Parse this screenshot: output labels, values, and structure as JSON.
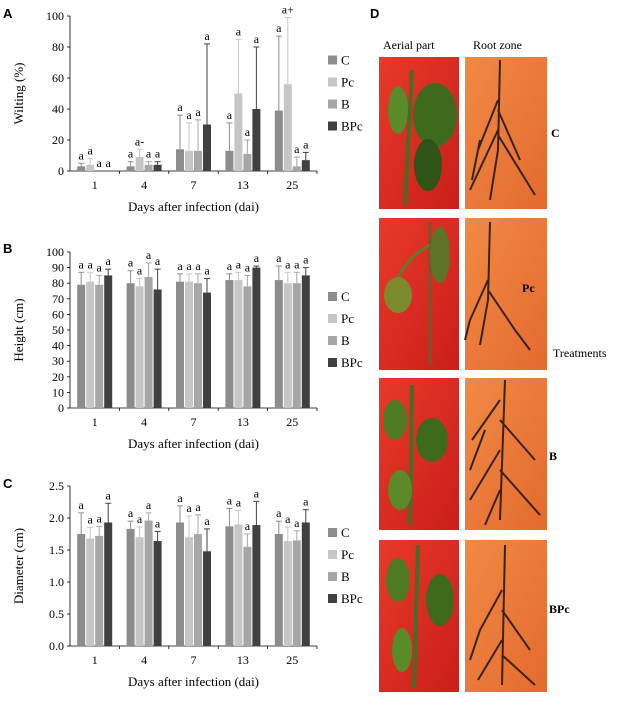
{
  "panels": {
    "A": "A",
    "B": "B",
    "C": "C",
    "D": "D"
  },
  "legend": {
    "entries": [
      "C",
      "Pc",
      "B",
      "BPc"
    ],
    "colors": [
      "#8c8c8c",
      "#c6c6c6",
      "#a6a6a6",
      "#404040"
    ]
  },
  "chart_data": [
    {
      "type": "bar",
      "panel": "A",
      "categories": [
        "1",
        "4",
        "7",
        "13",
        "25"
      ],
      "xlabel": "Days after infection (dai)",
      "ylabel": "Wilting (%)",
      "ylim": [
        0,
        100
      ],
      "yticks": [
        "0",
        "20",
        "40",
        "60",
        "80",
        "100"
      ],
      "series": [
        {
          "name": "C",
          "values": [
            3,
            3,
            14,
            13,
            39
          ],
          "errors": [
            2,
            3,
            22,
            18,
            48
          ]
        },
        {
          "name": "Pc",
          "values": [
            4,
            9,
            13,
            50,
            56
          ],
          "errors": [
            4,
            5,
            18,
            35,
            43
          ]
        },
        {
          "name": "B",
          "values": [
            0,
            4,
            13,
            11,
            3
          ],
          "errors": [
            0,
            2,
            20,
            9,
            6
          ]
        },
        {
          "name": "BPc",
          "values": [
            0,
            4,
            30,
            40,
            7
          ],
          "errors": [
            0,
            2,
            52,
            40,
            5
          ]
        }
      ],
      "bar_labels": [
        [
          "a",
          "a",
          "a",
          "a"
        ],
        [
          "a",
          "a-",
          "a",
          "a"
        ],
        [
          "a",
          "a",
          "a",
          "a"
        ],
        [
          "a",
          "a",
          "a",
          "a"
        ],
        [
          "a",
          "a+",
          "a",
          "a"
        ]
      ]
    },
    {
      "type": "bar",
      "panel": "B",
      "categories": [
        "1",
        "4",
        "7",
        "13",
        "25"
      ],
      "xlabel": "Days after infection (dai)",
      "ylabel": "Height (cm)",
      "ylim": [
        0,
        100
      ],
      "yticks": [
        "0",
        "10",
        "20",
        "30",
        "40",
        "50",
        "60",
        "70",
        "80",
        "90",
        "100"
      ],
      "series": [
        {
          "name": "C",
          "values": [
            79,
            80,
            81,
            82,
            82
          ],
          "errors": [
            8,
            8,
            5,
            4,
            9
          ]
        },
        {
          "name": "Pc",
          "values": [
            81,
            78,
            81,
            82,
            80
          ],
          "errors": [
            6,
            5,
            5,
            5,
            7
          ]
        },
        {
          "name": "B",
          "values": [
            79,
            84,
            80,
            78,
            80
          ],
          "errors": [
            6,
            9,
            6,
            7,
            7
          ]
        },
        {
          "name": "BPc",
          "values": [
            85,
            76,
            74,
            90,
            85
          ],
          "errors": [
            4,
            13,
            9,
            1,
            5
          ]
        }
      ],
      "bar_labels": [
        [
          "a",
          "a",
          "a",
          "a"
        ],
        [
          "a",
          "a",
          "a",
          "a"
        ],
        [
          "a",
          "a",
          "a",
          "a"
        ],
        [
          "a",
          "a",
          "a",
          "a"
        ],
        [
          "a",
          "a",
          "a",
          "a"
        ]
      ]
    },
    {
      "type": "bar",
      "panel": "C",
      "categories": [
        "1",
        "4",
        "7",
        "13",
        "25"
      ],
      "xlabel": "Days after infection (dai)",
      "ylabel": "Diameter (cm)",
      "ylim": [
        0,
        2.5
      ],
      "yticks": [
        "0.0",
        "0.5",
        "1.0",
        "1.5",
        "2.0",
        "2.5"
      ],
      "series": [
        {
          "name": "C",
          "values": [
            1.75,
            1.83,
            1.93,
            1.87,
            1.75
          ],
          "errors": [
            0.33,
            0.12,
            0.26,
            0.28,
            0.2
          ]
        },
        {
          "name": "Pc",
          "values": [
            1.68,
            1.7,
            1.7,
            1.9,
            1.64
          ],
          "errors": [
            0.17,
            0.16,
            0.33,
            0.22,
            0.22
          ]
        },
        {
          "name": "B",
          "values": [
            1.72,
            1.96,
            1.75,
            1.55,
            1.65
          ],
          "errors": [
            0.15,
            0.12,
            0.3,
            0.2,
            0.15
          ]
        },
        {
          "name": "BPc",
          "values": [
            1.93,
            1.64,
            1.48,
            1.89,
            1.93
          ],
          "errors": [
            0.3,
            0.15,
            0.35,
            0.37,
            0.2
          ]
        }
      ],
      "bar_labels": [
        [
          "a",
          "a",
          "a",
          "a"
        ],
        [
          "a",
          "a",
          "a",
          "a"
        ],
        [
          "a",
          "a",
          "a",
          "a"
        ],
        [
          "a",
          "a",
          "a",
          "a"
        ],
        [
          "a",
          "a",
          "a",
          "a"
        ]
      ]
    }
  ],
  "photos": {
    "headers": [
      "Aerial part",
      "Root zone"
    ],
    "row_labels": [
      "C",
      "Pc",
      "B",
      "BPc"
    ],
    "side_label": "Treatments"
  }
}
